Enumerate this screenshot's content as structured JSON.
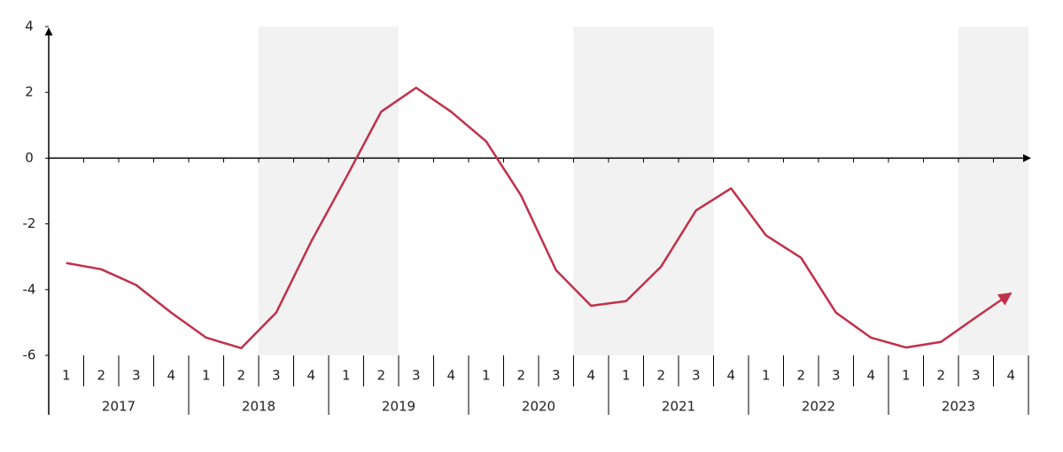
{
  "chart_data": {
    "type": "line",
    "categories": [
      "1",
      "2",
      "3",
      "4",
      "1",
      "2",
      "3",
      "4",
      "1",
      "2",
      "3",
      "4",
      "1",
      "2",
      "3",
      "4",
      "1",
      "2",
      "3",
      "4",
      "1",
      "2",
      "3",
      "4",
      "1",
      "2",
      "3",
      "4"
    ],
    "category_groups": [
      "2017",
      "2018",
      "2019",
      "2020",
      "2021",
      "2022",
      "2023"
    ],
    "series": [
      {
        "color": "#c1304a",
        "values": [
          -3.19,
          -3.38,
          -3.86,
          -4.7,
          -5.46,
          -5.78,
          -4.7,
          -2.54,
          -0.59,
          1.41,
          2.14,
          1.41,
          0.51,
          -1.14,
          -3.41,
          -4.49,
          -4.35,
          -3.3,
          -1.59,
          -0.92,
          -2.35,
          -3.03,
          -4.7,
          -5.46,
          -5.76,
          -5.59,
          -4.84,
          -4.11
        ]
      }
    ],
    "shaded_ranges": [
      [
        6,
        9
      ],
      [
        15,
        18
      ],
      [
        26,
        27
      ]
    ],
    "shade_color": "#f2f2f2",
    "ylim": [
      -6,
      4
    ],
    "yticks": [
      -6,
      -4,
      -2,
      0,
      2,
      4
    ],
    "grid": false
  }
}
